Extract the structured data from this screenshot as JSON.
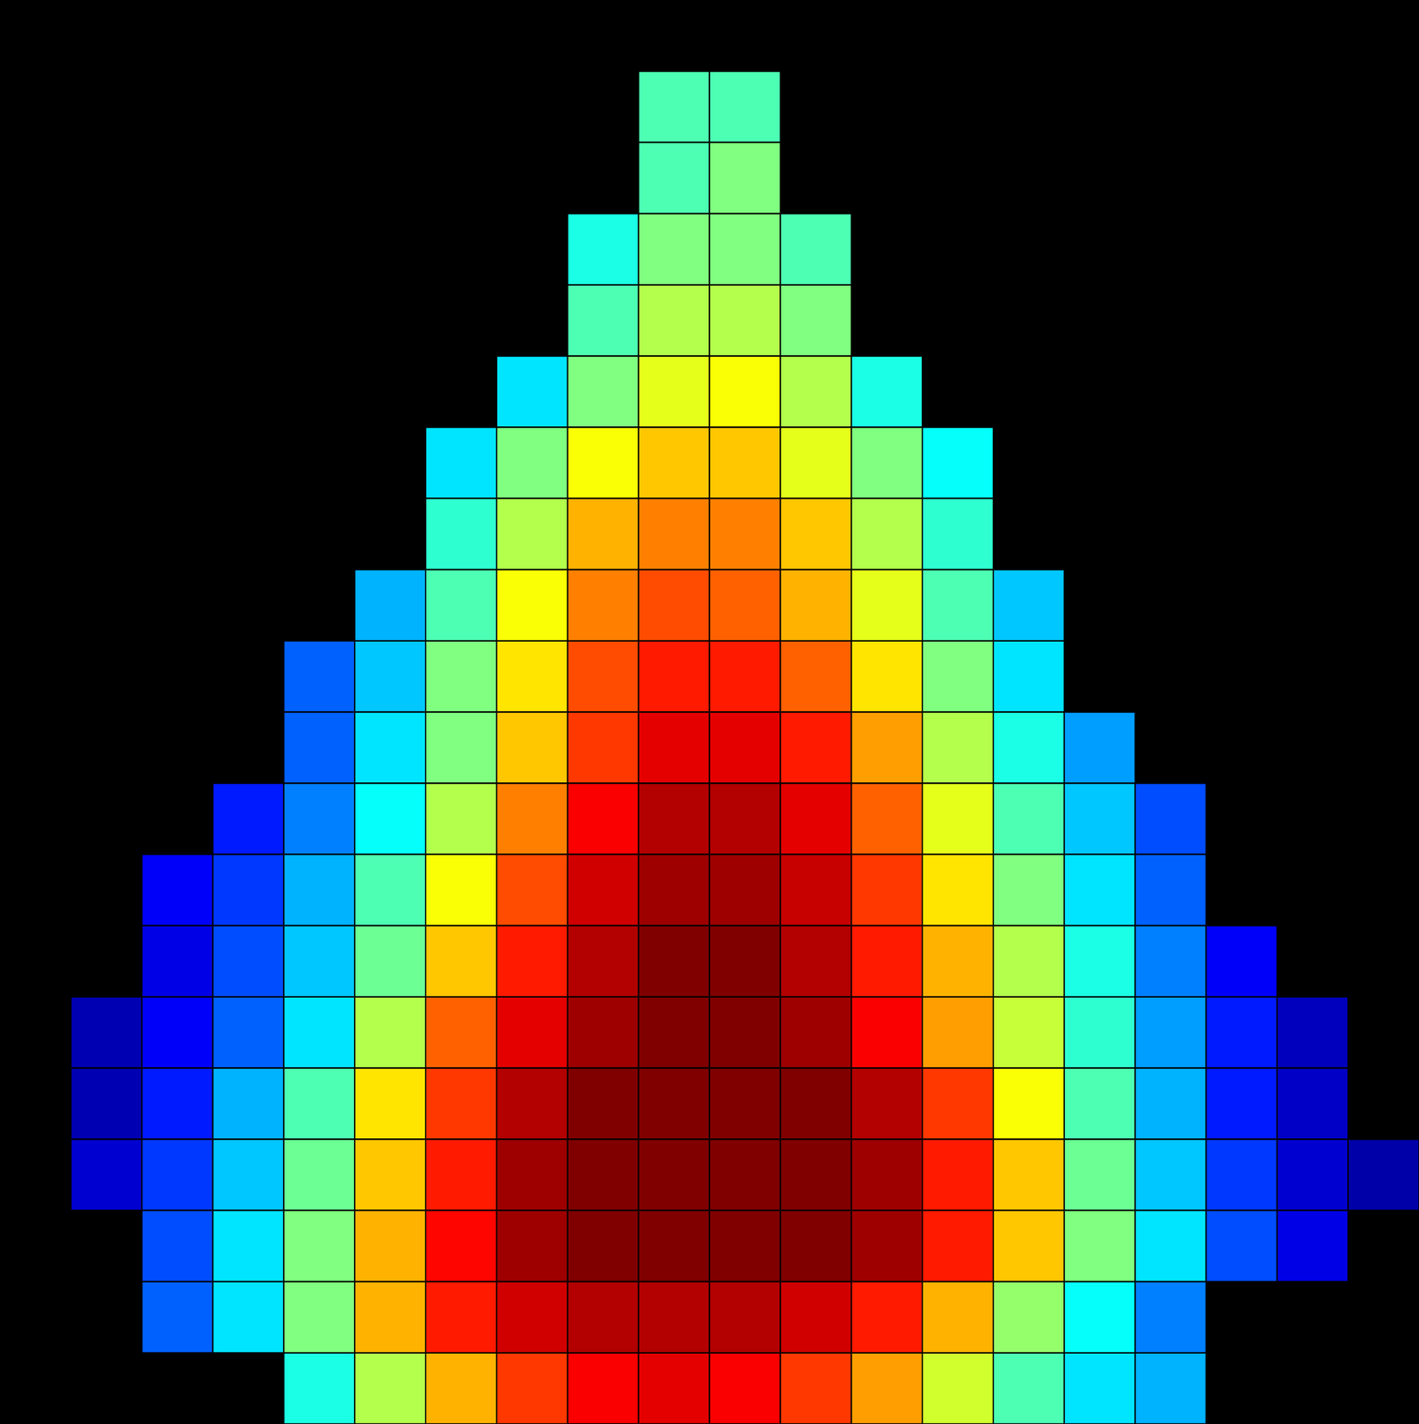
{
  "chart_data": {
    "type": "heatmap",
    "color": "jet",
    "color_range": [
      0,
      1
    ],
    "tick_labels": false,
    "grid": false,
    "values": [
      [
        null,
        null,
        null,
        null,
        null,
        null,
        null,
        null,
        null,
        null,
        null,
        null,
        null,
        null,
        null,
        null,
        null,
        null,
        null,
        null
      ],
      [
        null,
        null,
        null,
        null,
        null,
        null,
        null,
        null,
        null,
        0.45,
        0.45,
        null,
        null,
        null,
        null,
        null,
        null,
        null,
        null,
        null
      ],
      [
        null,
        null,
        null,
        null,
        null,
        null,
        null,
        null,
        null,
        0.45,
        0.5,
        null,
        null,
        null,
        null,
        null,
        null,
        null,
        null,
        null
      ],
      [
        null,
        null,
        null,
        null,
        null,
        null,
        null,
        null,
        0.4,
        0.5,
        0.5,
        0.45,
        null,
        null,
        null,
        null,
        null,
        null,
        null,
        null
      ],
      [
        null,
        null,
        null,
        null,
        null,
        null,
        null,
        null,
        0.45,
        0.55,
        0.55,
        0.5,
        null,
        null,
        null,
        null,
        null,
        null,
        null,
        null
      ],
      [
        null,
        null,
        null,
        null,
        null,
        null,
        null,
        0.35,
        0.5,
        0.6,
        0.62,
        0.55,
        0.4,
        null,
        null,
        null,
        null,
        null,
        null,
        null
      ],
      [
        null,
        null,
        null,
        null,
        null,
        null,
        0.35,
        0.5,
        0.62,
        0.68,
        0.68,
        0.6,
        0.5,
        0.38,
        null,
        null,
        null,
        null,
        null,
        null
      ],
      [
        null,
        null,
        null,
        null,
        null,
        null,
        0.42,
        0.55,
        0.7,
        0.75,
        0.75,
        0.68,
        0.55,
        0.42,
        null,
        null,
        null,
        null,
        null,
        null
      ],
      [
        null,
        null,
        null,
        null,
        null,
        0.3,
        0.45,
        0.62,
        0.75,
        0.8,
        0.78,
        0.7,
        0.6,
        0.45,
        0.32,
        null,
        null,
        null,
        null,
        null
      ],
      [
        null,
        null,
        null,
        null,
        0.22,
        0.32,
        0.5,
        0.65,
        0.8,
        0.85,
        0.85,
        0.78,
        0.65,
        0.5,
        0.35,
        null,
        null,
        null,
        null,
        null
      ],
      [
        null,
        null,
        null,
        null,
        0.22,
        0.35,
        0.5,
        0.68,
        0.82,
        0.9,
        0.9,
        0.85,
        0.72,
        0.55,
        0.4,
        0.28,
        null,
        null,
        null,
        null
      ],
      [
        null,
        null,
        null,
        0.15,
        0.25,
        0.38,
        0.55,
        0.75,
        0.88,
        0.95,
        0.95,
        0.9,
        0.78,
        0.6,
        0.45,
        0.32,
        0.2,
        null,
        null,
        null
      ],
      [
        null,
        null,
        0.12,
        0.18,
        0.3,
        0.45,
        0.62,
        0.8,
        0.92,
        0.97,
        0.97,
        0.93,
        0.82,
        0.65,
        0.5,
        0.35,
        0.22,
        null,
        null,
        null
      ],
      [
        null,
        null,
        0.1,
        0.2,
        0.32,
        0.48,
        0.68,
        0.85,
        0.95,
        1,
        1,
        0.95,
        0.85,
        0.7,
        0.55,
        0.4,
        0.25,
        0.12,
        null,
        null
      ],
      [
        null,
        0.05,
        0.12,
        0.22,
        0.35,
        0.55,
        0.78,
        0.9,
        0.97,
        1,
        1,
        0.97,
        0.88,
        0.72,
        0.57,
        0.42,
        0.28,
        0.15,
        0.06,
        null
      ],
      [
        null,
        0.05,
        0.15,
        0.3,
        0.45,
        0.65,
        0.82,
        0.95,
        1,
        1,
        1,
        1,
        0.95,
        0.82,
        0.62,
        0.45,
        0.3,
        0.15,
        0.07,
        null
      ],
      [
        null,
        0.08,
        0.18,
        0.32,
        0.48,
        0.68,
        0.85,
        0.97,
        1,
        1,
        1,
        1,
        0.97,
        0.85,
        0.68,
        0.48,
        0.32,
        0.18,
        0.08,
        0.04
      ],
      [
        null,
        null,
        0.2,
        0.35,
        0.5,
        0.7,
        0.87,
        0.97,
        1,
        1,
        1,
        1,
        0.97,
        0.85,
        0.68,
        0.5,
        0.35,
        0.2,
        0.1,
        null
      ],
      [
        null,
        null,
        0.22,
        0.35,
        0.5,
        0.7,
        0.85,
        0.92,
        0.95,
        0.95,
        0.95,
        0.92,
        0.85,
        0.7,
        0.52,
        0.38,
        0.25,
        null,
        null,
        null
      ],
      [
        null,
        null,
        null,
        null,
        0.4,
        0.55,
        0.7,
        0.82,
        0.88,
        0.9,
        0.88,
        0.82,
        0.72,
        0.58,
        0.45,
        0.35,
        0.3,
        null,
        null,
        null
      ]
    ]
  }
}
